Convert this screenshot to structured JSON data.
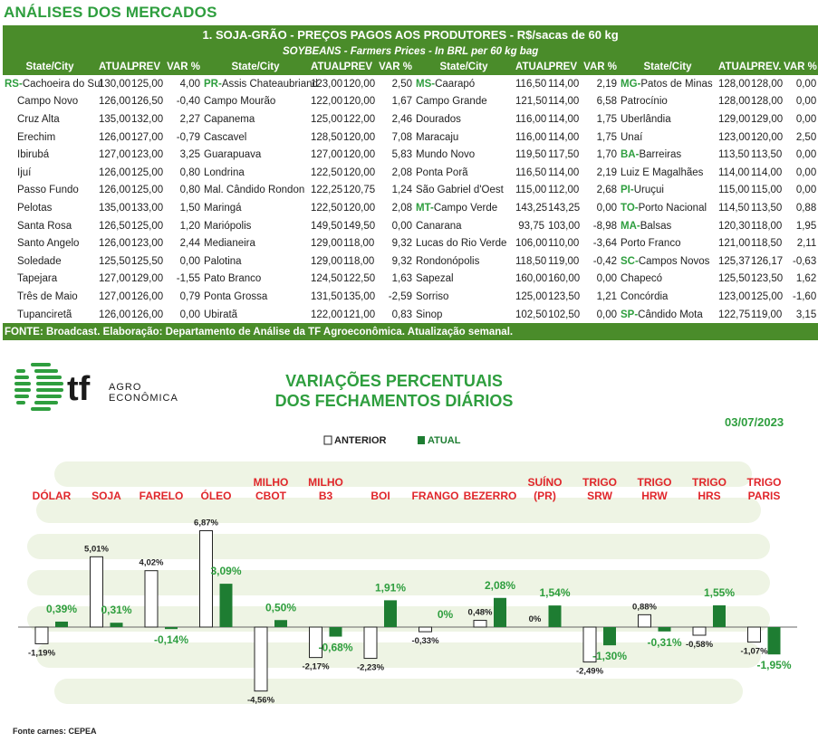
{
  "page_title": "ANÁLISES DOS MERCADOS",
  "table": {
    "title": "1. SOJA-GRÃO - PREÇOS PAGOS AOS PRODUTORES - R$/sacas de 60 kg",
    "subtitle": "SOYBEANS - Farmers Prices - In BRL per 60 kg bag",
    "headers": [
      "State/City",
      "ATUAL",
      "PREV",
      "VAR %",
      "State/City",
      "ATUAL",
      "PREV",
      "VAR %",
      "State/City",
      "ATUAL",
      "PREV",
      "VAR %",
      "State/City",
      "ATUAL",
      "PREV.",
      "VAR %"
    ],
    "rows": [
      [
        [
          "RS-",
          "Cachoeira do Sul",
          "130,00",
          "125,00",
          "4,00"
        ],
        [
          "PR-",
          "Assis Chateaubriand",
          "123,00",
          "120,00",
          "2,50"
        ],
        [
          "MS-",
          "Caarapó",
          "116,50",
          "114,00",
          "2,19"
        ],
        [
          "MG-",
          "Patos de Minas",
          "128,00",
          "128,00",
          "0,00"
        ]
      ],
      [
        [
          "",
          "Campo Novo",
          "126,00",
          "126,50",
          "-0,40"
        ],
        [
          "",
          "Campo Mourão",
          "122,00",
          "120,00",
          "1,67"
        ],
        [
          "",
          "Campo Grande",
          "121,50",
          "114,00",
          "6,58"
        ],
        [
          "",
          "Patrocínio",
          "128,00",
          "128,00",
          "0,00"
        ]
      ],
      [
        [
          "",
          "Cruz Alta",
          "135,00",
          "132,00",
          "2,27"
        ],
        [
          "",
          "Capanema",
          "125,00",
          "122,00",
          "2,46"
        ],
        [
          "",
          "Dourados",
          "116,00",
          "114,00",
          "1,75"
        ],
        [
          "",
          "Uberlândia",
          "129,00",
          "129,00",
          "0,00"
        ]
      ],
      [
        [
          "",
          "Erechim",
          "126,00",
          "127,00",
          "-0,79"
        ],
        [
          "",
          "Cascavel",
          "128,50",
          "120,00",
          "7,08"
        ],
        [
          "",
          "Maracaju",
          "116,00",
          "114,00",
          "1,75"
        ],
        [
          "",
          "Unaí",
          "123,00",
          "120,00",
          "2,50"
        ]
      ],
      [
        [
          "",
          "Ibirubá",
          "127,00",
          "123,00",
          "3,25"
        ],
        [
          "",
          "Guarapuava",
          "127,00",
          "120,00",
          "5,83"
        ],
        [
          "",
          "Mundo Novo",
          "119,50",
          "117,50",
          "1,70"
        ],
        [
          "BA-",
          "Barreiras",
          "113,50",
          "113,50",
          "0,00"
        ]
      ],
      [
        [
          "",
          "Ijuí",
          "126,00",
          "125,00",
          "0,80"
        ],
        [
          "",
          "Londrina",
          "122,50",
          "120,00",
          "2,08"
        ],
        [
          "",
          "Ponta Porã",
          "116,50",
          "114,00",
          "2,19"
        ],
        [
          "",
          "Luiz E Magalhães",
          "114,00",
          "114,00",
          "0,00"
        ]
      ],
      [
        [
          "",
          "Passo Fundo",
          "126,00",
          "125,00",
          "0,80"
        ],
        [
          "",
          "Mal. Cândido Rondon",
          "122,25",
          "120,75",
          "1,24"
        ],
        [
          "",
          "São Gabriel d'Oest",
          "115,00",
          "112,00",
          "2,68"
        ],
        [
          "PI-",
          "Uruçui",
          "115,00",
          "115,00",
          "0,00"
        ]
      ],
      [
        [
          "",
          "Pelotas",
          "135,00",
          "133,00",
          "1,50"
        ],
        [
          "",
          "Maringá",
          "122,50",
          "120,00",
          "2,08"
        ],
        [
          "MT-",
          "Campo Verde",
          "143,25",
          "143,25",
          "0,00"
        ],
        [
          "TO-",
          "Porto Nacional",
          "114,50",
          "113,50",
          "0,88"
        ]
      ],
      [
        [
          "",
          "Santa Rosa",
          "126,50",
          "125,00",
          "1,20"
        ],
        [
          "",
          "Mariópolis",
          "149,50",
          "149,50",
          "0,00"
        ],
        [
          "",
          "Canarana",
          "93,75",
          "103,00",
          "-8,98"
        ],
        [
          "MA-",
          "Balsas",
          "120,30",
          "118,00",
          "1,95"
        ]
      ],
      [
        [
          "",
          "Santo Angelo",
          "126,00",
          "123,00",
          "2,44"
        ],
        [
          "",
          "Medianeira",
          "129,00",
          "118,00",
          "9,32"
        ],
        [
          "",
          "Lucas do Rio Verde",
          "106,00",
          "110,00",
          "-3,64"
        ],
        [
          "",
          "Porto Franco",
          "121,00",
          "118,50",
          "2,11"
        ]
      ],
      [
        [
          "",
          "Soledade",
          "125,50",
          "125,50",
          "0,00"
        ],
        [
          "",
          "Palotina",
          "129,00",
          "118,00",
          "9,32"
        ],
        [
          "",
          "Rondonópolis",
          "118,50",
          "119,00",
          "-0,42"
        ],
        [
          "SC-",
          "Campos Novos",
          "125,37",
          "126,17",
          "-0,63"
        ]
      ],
      [
        [
          "",
          "Tapejara",
          "127,00",
          "129,00",
          "-1,55"
        ],
        [
          "",
          "Pato Branco",
          "124,50",
          "122,50",
          "1,63"
        ],
        [
          "",
          "Sapezal",
          "160,00",
          "160,00",
          "0,00"
        ],
        [
          "",
          "Chapecó",
          "125,50",
          "123,50",
          "1,62"
        ]
      ],
      [
        [
          "",
          "Três de Maio",
          "127,00",
          "126,00",
          "0,79"
        ],
        [
          "",
          "Ponta Grossa",
          "131,50",
          "135,00",
          "-2,59"
        ],
        [
          "",
          "Sorriso",
          "125,00",
          "123,50",
          "1,21"
        ],
        [
          "",
          "Concórdia",
          "123,00",
          "125,00",
          "-1,60"
        ]
      ],
      [
        [
          "",
          "Tupanciretã",
          "126,00",
          "126,00",
          "0,00"
        ],
        [
          "",
          "Ubiratã",
          "122,00",
          "121,00",
          "0,83"
        ],
        [
          "",
          "Sinop",
          "102,50",
          "102,50",
          "0,00"
        ],
        [
          "SP-",
          "Cândido Mota",
          "122,75",
          "119,00",
          "3,15"
        ]
      ]
    ],
    "footer": "FONTE: Broadcast. Elaboração: Departamento de Análise da TF Agroeconômica. Atualização semanal."
  },
  "logo": {
    "mark": "tf",
    "line1": "AGRO",
    "line2": "ECONÔMICA"
  },
  "chart_data": {
    "type": "bar",
    "title_line1": "VARIAÇÕES PERCENTUAIS",
    "title_line2": "DOS FECHAMENTOS DIÁRIOS",
    "date": "03/07/2023",
    "legend": [
      "ANTERIOR",
      "ATUAL"
    ],
    "categories": [
      [
        "DÓLAR"
      ],
      [
        "SOJA"
      ],
      [
        "FARELO"
      ],
      [
        "ÓLEO"
      ],
      [
        "MILHO",
        "CBOT"
      ],
      [
        "MILHO",
        "B3"
      ],
      [
        "BOI"
      ],
      [
        "FRANGO"
      ],
      [
        "BEZERRO"
      ],
      [
        "SUÍNO",
        "(PR)"
      ],
      [
        "TRIGO",
        "SRW"
      ],
      [
        "TRIGO",
        "HRW"
      ],
      [
        "TRIGO",
        "HRS"
      ],
      [
        "TRIGO",
        "PARIS"
      ]
    ],
    "series": [
      {
        "name": "ANTERIOR",
        "values": [
          -1.19,
          5.01,
          4.02,
          6.87,
          -4.56,
          -2.17,
          -2.23,
          -0.33,
          0.48,
          0,
          -2.49,
          0.88,
          -0.58,
          -1.07
        ],
        "labels": [
          "-1,19%",
          "5,01%",
          "4,02%",
          "6,87%",
          "-4,56%",
          "-2,17%",
          "-2,23%",
          "-0,33%",
          "0,48%",
          "0%",
          "-2,49%",
          "0,88%",
          "-0,58%",
          "-1,07%"
        ]
      },
      {
        "name": "ATUAL",
        "values": [
          0.39,
          0.31,
          -0.14,
          3.09,
          0.5,
          -0.68,
          1.91,
          0,
          2.08,
          1.54,
          -1.3,
          -0.31,
          1.55,
          -1.95
        ],
        "labels": [
          "0,39%",
          "0,31%",
          "-0,14%",
          "3,09%",
          "0,50%",
          "-0,68%",
          "1,91%",
          "0%",
          "2,08%",
          "1,54%",
          "-1,30%",
          "-0,31%",
          "1,55%",
          "-1,95%"
        ]
      }
    ],
    "colors": {
      "atual": "#1e7d32",
      "anterior": "#ffffff",
      "category": "#e0262b",
      "label_atual": "#2e9e3e"
    }
  },
  "source_note": "Fonte carnes: CEPEA"
}
